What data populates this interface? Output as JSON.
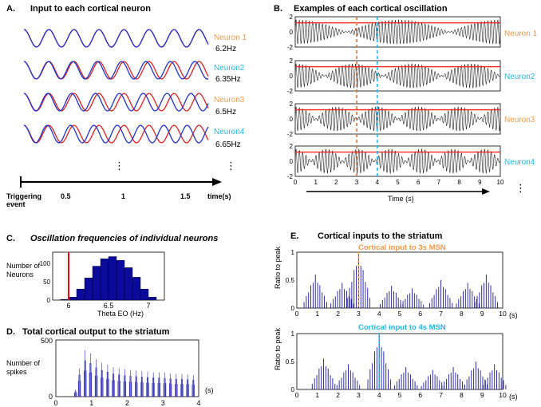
{
  "panels": {
    "A": {
      "letter": "A.",
      "title": "Input to each cortical neuron",
      "neurons": [
        {
          "name": "Neuron 1",
          "freq": "6.2Hz",
          "name_color": "#F59A4A"
        },
        {
          "name": "Neuron2",
          "freq": "6.35Hz",
          "name_color": "#25B6E6"
        },
        {
          "name": "Neuron3",
          "freq": "6.5Hz",
          "name_color": "#F59A4A"
        },
        {
          "name": "Neuron4",
          "freq": "6.65Hz",
          "name_color": "#25B6E6"
        }
      ],
      "ellipsis": "⋮",
      "axis": {
        "start_label": [
          "Triggering",
          "event"
        ],
        "ticks": [
          "0.5",
          "1",
          "1.5"
        ],
        "unit": "time(s)"
      },
      "colors": {
        "wave1": "#E02020",
        "wave2": "#2030D0"
      }
    },
    "B": {
      "letter": "B.",
      "title": "Examples of each cortical oscillation",
      "neurons": [
        {
          "name": "Neuron 1",
          "color": "#F59A4A"
        },
        {
          "name": "Neuron2",
          "color": "#25B6E6"
        },
        {
          "name": "Neuron3",
          "color": "#F59A4A"
        },
        {
          "name": "Neuron4",
          "color": "#25B6E6"
        }
      ],
      "yticks": [
        "2",
        "0",
        "-2"
      ],
      "xticks": [
        "0",
        "1",
        "2",
        "3",
        "4",
        "5",
        "6",
        "7",
        "8",
        "9",
        "10"
      ],
      "xlabel": "Time (s)",
      "ellipsis": "⋮",
      "dashed_lines": [
        {
          "t": 3,
          "color": "#E07020"
        },
        {
          "t": 4,
          "color": "#25B6E6"
        }
      ],
      "threshold": 1.2,
      "threshold_color": "#FF2020",
      "beat_freqs": [
        0.2,
        0.35,
        0.5,
        0.65
      ],
      "carrier_freq": 6.2
    },
    "C": {
      "letter": "C.",
      "title": "Oscillation frequencies of individual neurons",
      "ylabel": [
        "Number of",
        "Neurons"
      ],
      "xlabel": "Theta EO (Hz)",
      "yticks": [
        "100",
        "50",
        "0"
      ],
      "xticks": [
        "6",
        "6.5",
        "7"
      ]
    },
    "D": {
      "letter": "D.",
      "title": "Total cortical output to the striatum",
      "ylabel": [
        "Number of",
        "spikes"
      ],
      "yticks": [
        "500",
        "0"
      ],
      "xticks": [
        "0",
        "1",
        "2",
        "3",
        "4"
      ],
      "unit": "(s)"
    },
    "E": {
      "letter": "E.",
      "title": "Cortical inputs to the striatum",
      "sub1": {
        "label": "Cortical input to 3s MSN",
        "color": "#F59A4A",
        "marker": 3
      },
      "sub2": {
        "label": "Cortical input to 4s MSN",
        "color": "#25B6E6",
        "marker": 4
      },
      "ylabel": "Ratio to peak",
      "yticks": [
        "1",
        "0.5",
        "0"
      ],
      "xticks": [
        "0",
        "1",
        "2",
        "3",
        "4",
        "5",
        "6",
        "7",
        "8",
        "9",
        "10"
      ],
      "unit": "(s)"
    }
  },
  "chart_data": [
    {
      "type": "bar",
      "title": "Oscillation frequencies of individual neurons",
      "xlabel": "Theta EO (Hz)",
      "ylabel": "Number of Neurons",
      "x": [
        5.95,
        6.05,
        6.15,
        6.25,
        6.35,
        6.45,
        6.55,
        6.65,
        6.75,
        6.85,
        6.95,
        7.05
      ],
      "values": [
        2,
        8,
        30,
        60,
        92,
        112,
        118,
        108,
        88,
        62,
        30,
        8
      ],
      "xlim": [
        5.8,
        7.2
      ],
      "ylim": [
        0,
        130
      ],
      "marker_line_x": 6.0,
      "marker_color": "#DD1111",
      "bar_color": "#0A0A9C"
    },
    {
      "type": "bar",
      "title": "Total cortical output to the striatum",
      "xlabel": "(s)",
      "ylabel": "Number of spikes",
      "xlim": [
        0,
        4
      ],
      "ylim": [
        0,
        500
      ],
      "x": [
        0.55,
        0.66,
        0.82,
        0.97,
        1.13,
        1.29,
        1.45,
        1.61,
        1.77,
        1.93,
        2.09,
        2.25,
        2.41,
        2.57,
        2.73,
        2.89,
        3.05,
        3.21,
        3.37,
        3.53,
        3.69,
        3.85
      ],
      "values": [
        60,
        250,
        410,
        380,
        330,
        300,
        280,
        260,
        250,
        240,
        235,
        230,
        225,
        220,
        215,
        215,
        210,
        205,
        200,
        200,
        195,
        190
      ],
      "bar_color": "#2A2AB0"
    },
    {
      "type": "bar",
      "title": "Cortical input to 3s MSN",
      "ylabel": "Ratio to peak",
      "xlim": [
        0,
        10
      ],
      "ylim": [
        0,
        1
      ],
      "bar_color": "#1A1A9A",
      "clusters": [
        {
          "c": 0.9,
          "h": 0.6
        },
        {
          "c": 2.2,
          "h": 0.45
        },
        {
          "c": 3.0,
          "h": 1.0
        },
        {
          "c": 4.6,
          "h": 0.4
        },
        {
          "c": 5.6,
          "h": 0.35
        },
        {
          "c": 7.0,
          "h": 0.5
        },
        {
          "c": 8.3,
          "h": 0.45
        },
        {
          "c": 9.2,
          "h": 0.6
        }
      ]
    },
    {
      "type": "bar",
      "title": "Cortical input to 4s MSN",
      "ylabel": "Ratio to peak",
      "xlim": [
        0,
        10
      ],
      "ylim": [
        0,
        1
      ],
      "bar_color": "#1A1A9A",
      "clusters": [
        {
          "c": 1.3,
          "h": 0.55
        },
        {
          "c": 2.5,
          "h": 0.45
        },
        {
          "c": 4.0,
          "h": 1.0
        },
        {
          "c": 5.3,
          "h": 0.4
        },
        {
          "c": 6.6,
          "h": 0.35
        },
        {
          "c": 7.6,
          "h": 0.4
        },
        {
          "c": 8.7,
          "h": 0.5
        },
        {
          "c": 9.6,
          "h": 0.45
        }
      ]
    }
  ]
}
